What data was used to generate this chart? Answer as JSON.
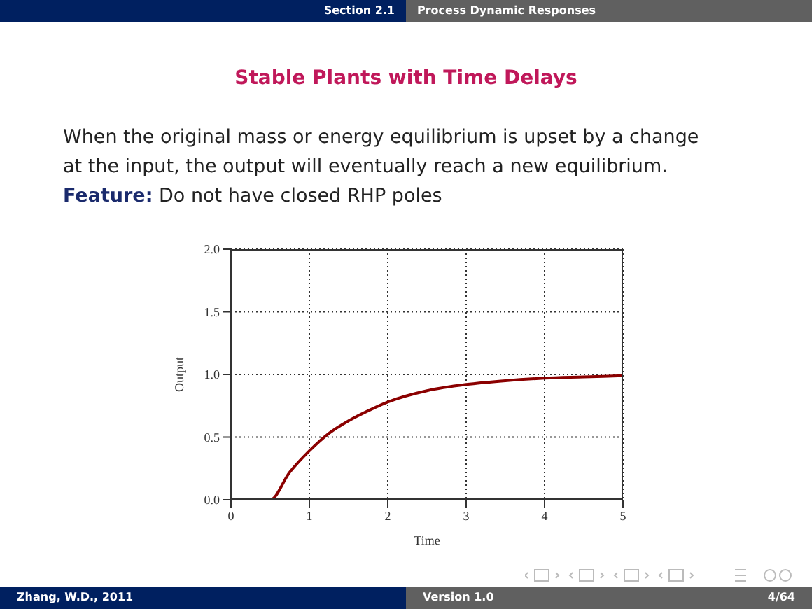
{
  "chart_data": {
    "type": "line",
    "title": "Stable Plants with Time Delays",
    "xlabel": "Time",
    "ylabel": "Output",
    "annotations": [
      "Section 2.1",
      "Process Dynamic Responses",
      "When the original mass or energy equilibrium is upset by a change at the input, the output will eventually reach a new equilibrium.",
      "Feature:",
      "Do not have closed RHP poles",
      "Zhang, W.D., 2011",
      "Version 1.0",
      "4/64"
    ],
    "x": [
      0,
      0.5,
      0.75,
      1,
      1.25,
      1.5,
      1.75,
      2,
      2.5,
      3,
      3.5,
      4,
      4.5,
      5
    ],
    "series": [
      {
        "color": "#8b0000",
        "values": [
          0,
          0,
          0.22,
          0.39,
          0.53,
          0.63,
          0.71,
          0.78,
          0.87,
          0.92,
          0.95,
          0.97,
          0.98,
          0.99
        ]
      }
    ],
    "xlim": [
      0,
      5
    ],
    "xticks": [
      0,
      1,
      2,
      3,
      4,
      5
    ],
    "ylim": [
      0,
      2
    ],
    "yticks": [
      {
        "value": 0,
        "label": "0.0"
      },
      {
        "value": 0.5,
        "label": "0.5"
      },
      {
        "value": 1,
        "label": "1.0"
      },
      {
        "value": 1.5,
        "label": "1.5"
      },
      {
        "value": 2,
        "label": "2.0"
      }
    ],
    "grid": true,
    "marker": "none",
    "line_style": "solid"
  }
}
